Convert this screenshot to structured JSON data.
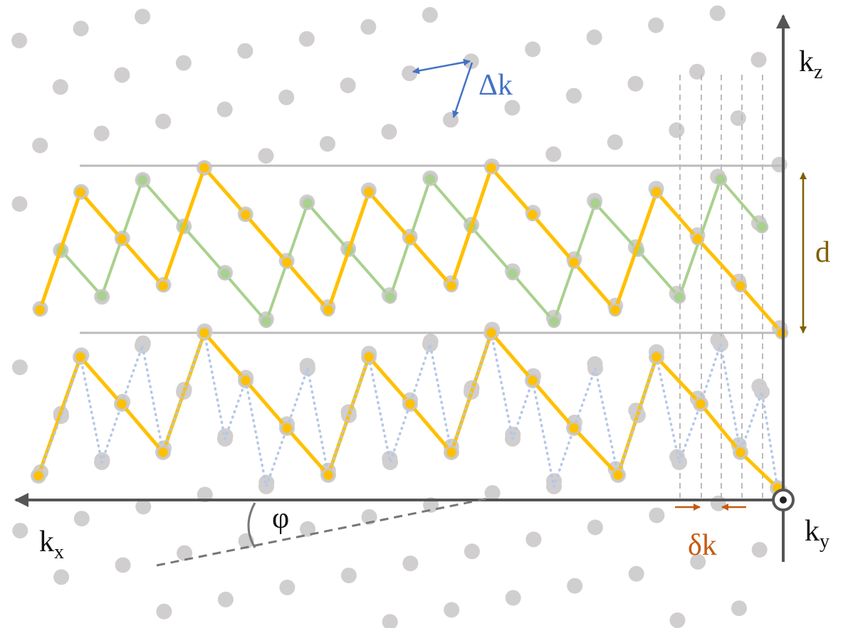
{
  "labels": {
    "lattice_vector": "Δk",
    "axis_z": {
      "base": "k",
      "sub": "z"
    },
    "axis_x": {
      "base": "k",
      "sub": "x"
    },
    "axis_y": {
      "base": "k",
      "sub": "y"
    },
    "period": "d",
    "angle": "φ",
    "spacing": "δk"
  }
}
